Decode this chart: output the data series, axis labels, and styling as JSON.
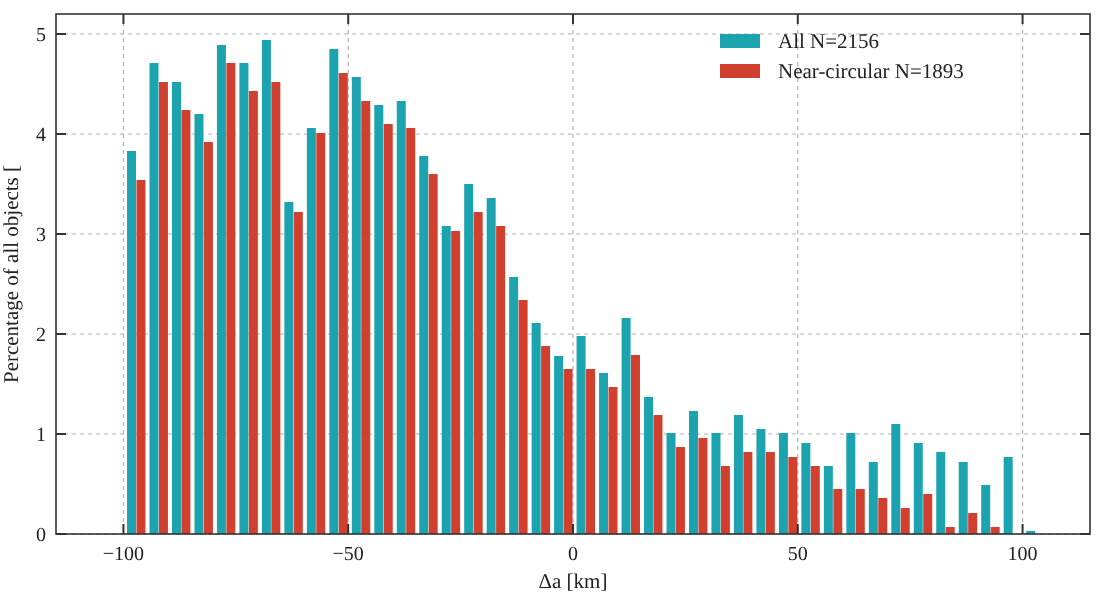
{
  "chart_data": {
    "type": "histogram",
    "xlabel": "Δa [km]",
    "ylabel": "Percentage of all objects [",
    "bins": [
      -100,
      -95,
      -90,
      -85,
      -80,
      -75,
      -70,
      -65,
      -60,
      -55,
      -50,
      -45,
      -40,
      -35,
      -30,
      -25,
      -20,
      -15,
      -10,
      -5,
      0,
      5,
      10,
      15,
      20,
      25,
      30,
      35,
      40,
      45,
      50,
      55,
      60,
      65,
      70,
      75,
      80,
      85,
      90,
      95,
      100,
      105
    ],
    "series": [
      {
        "name": "All N=2156",
        "color": "#1ba3b0",
        "values": [
          3.83,
          4.71,
          4.52,
          4.2,
          4.89,
          4.71,
          4.94,
          3.32,
          4.06,
          4.85,
          4.57,
          4.29,
          4.33,
          3.78,
          3.08,
          3.5,
          3.36,
          2.57,
          2.11,
          1.78,
          1.98,
          1.61,
          2.16,
          1.37,
          1.01,
          1.23,
          1.01,
          1.19,
          1.05,
          1.01,
          0.91,
          0.68,
          1.01,
          0.72,
          1.1,
          0.91,
          0.82,
          0.72,
          0.49,
          0.77,
          0.03
        ]
      },
      {
        "name": "Near-circular N=1893",
        "color": "#d1402e",
        "values": [
          3.54,
          4.52,
          4.24,
          3.92,
          4.71,
          4.43,
          4.52,
          3.22,
          4.01,
          4.61,
          4.33,
          4.1,
          4.06,
          3.6,
          3.03,
          3.22,
          3.08,
          2.34,
          1.88,
          1.65,
          1.65,
          1.47,
          1.79,
          1.19,
          0.87,
          0.96,
          0.68,
          0.82,
          0.82,
          0.77,
          0.68,
          0.45,
          0.45,
          0.36,
          0.26,
          0.4,
          0.07,
          0.21,
          0.07,
          0,
          0
        ]
      }
    ],
    "xlim": [
      -115,
      115
    ],
    "ylim": [
      0,
      5.2
    ],
    "xticks": [
      -100,
      -50,
      0,
      50,
      100
    ],
    "yticks": [
      0,
      1,
      2,
      3,
      4,
      5
    ],
    "grid": true,
    "legend": "top right"
  }
}
